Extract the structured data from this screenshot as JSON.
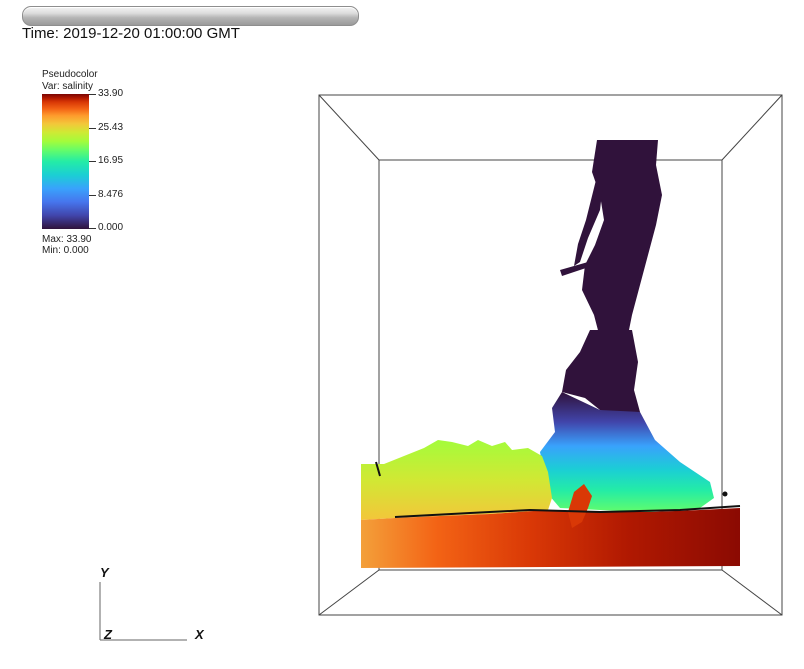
{
  "time": {
    "label": "Time: 2019-12-20 01:00:00 GMT"
  },
  "legend": {
    "title_line1": "Pseudocolor",
    "title_line2": "Var: salinity",
    "ticks": [
      "33.90",
      "25.43",
      "16.95",
      "8.476",
      "0.000"
    ],
    "max_label": "Max:  33.90",
    "min_label": "Min:  0.000"
  },
  "axes": {
    "y_label": "Y",
    "x_label": "X",
    "z_label": "Z"
  },
  "colors": {
    "fresh": "#30123b",
    "mid": "#24eca6",
    "salty": "#8b0a02",
    "box_line": "#444444"
  }
}
